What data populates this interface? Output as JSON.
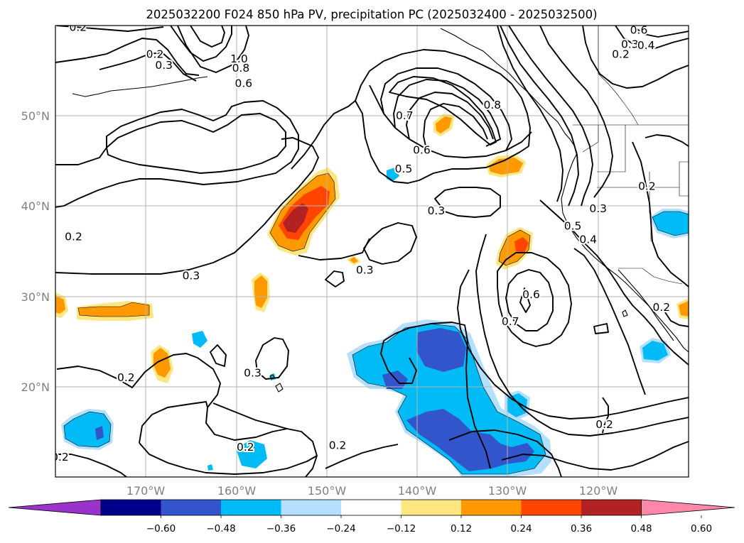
{
  "title": "2025032200 F024 850 hPa PV, precipitation PC (2025032400 - 2025032500)",
  "map": {
    "lat_labels": [
      "50°N",
      "40°N",
      "30°N",
      "20°N"
    ],
    "lon_labels": [
      "170°W",
      "160°W",
      "150°W",
      "140°W",
      "130°W",
      "120°W"
    ],
    "contour_labels": [
      {
        "text": "0.2",
        "lon": -177.5,
        "lat": 59.8
      },
      {
        "text": "0.2",
        "lon": -169,
        "lat": 56.8
      },
      {
        "text": "0.3",
        "lon": -168,
        "lat": 55.6
      },
      {
        "text": "1.0",
        "lon": -159.7,
        "lat": 56.3
      },
      {
        "text": "0.8",
        "lon": -159.5,
        "lat": 55.3
      },
      {
        "text": "0.6",
        "lon": -159.2,
        "lat": 53.6
      },
      {
        "text": "0.6",
        "lon": -115.5,
        "lat": 59.5
      },
      {
        "text": "0.3",
        "lon": -116.5,
        "lat": 57.9
      },
      {
        "text": "0.4",
        "lon": -114.7,
        "lat": 57.8
      },
      {
        "text": "0.2",
        "lon": -117.5,
        "lat": 56.8
      },
      {
        "text": "0.8",
        "lon": -131.7,
        "lat": 51.2
      },
      {
        "text": "0.7",
        "lon": -141.4,
        "lat": 50
      },
      {
        "text": "0.6",
        "lon": -139.5,
        "lat": 46.2
      },
      {
        "text": "0.5",
        "lon": -141.5,
        "lat": 44.1
      },
      {
        "text": "0.3",
        "lon": -137.9,
        "lat": 39.5
      },
      {
        "text": "0.2",
        "lon": -178,
        "lat": 36.6
      },
      {
        "text": "0.3",
        "lon": -165,
        "lat": 32.3
      },
      {
        "text": "0.3",
        "lon": -145.8,
        "lat": 32.9
      },
      {
        "text": "0.2",
        "lon": -114.6,
        "lat": 42.2
      },
      {
        "text": "0.3",
        "lon": -120,
        "lat": 39.7
      },
      {
        "text": "0.5",
        "lon": -122.8,
        "lat": 37.8
      },
      {
        "text": "0.4",
        "lon": -121.1,
        "lat": 36.3
      },
      {
        "text": "0.6",
        "lon": -127.4,
        "lat": 30.2
      },
      {
        "text": "0.7",
        "lon": -129.7,
        "lat": 27.2
      },
      {
        "text": "0.2",
        "lon": -113,
        "lat": 28.8
      },
      {
        "text": "0.2",
        "lon": -172.2,
        "lat": 21
      },
      {
        "text": "0.3",
        "lon": -158.2,
        "lat": 21.5
      },
      {
        "text": "0.2",
        "lon": -159,
        "lat": 13.3
      },
      {
        "text": "0.2",
        "lon": -148.8,
        "lat": 13.5
      },
      {
        "text": "0.2",
        "lon": -179.5,
        "lat": 12.2
      },
      {
        "text": "0.2",
        "lon": -119.3,
        "lat": 15.8
      }
    ]
  },
  "colorbar": {
    "ticks": [
      "−0.60",
      "−0.48",
      "−0.36",
      "−0.24",
      "−0.12",
      "0.12",
      "0.24",
      "0.36",
      "0.48",
      "0.60"
    ],
    "colors": [
      "#9933cc",
      "#00008b",
      "#3355cc",
      "#00bbf5",
      "#b3e0ff",
      "#ffffff",
      "#ffe680",
      "#ff9900",
      "#ff4400",
      "#b22222",
      "#ff88aa"
    ]
  }
}
